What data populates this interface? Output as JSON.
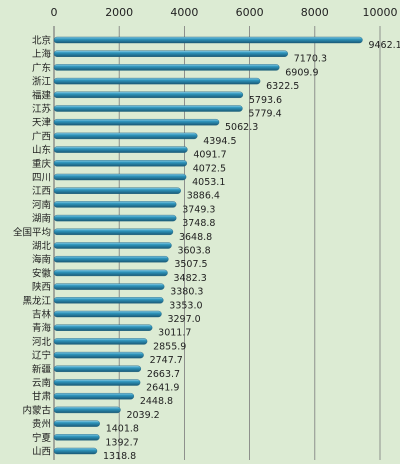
{
  "chart_data": {
    "type": "bar",
    "orientation": "horizontal",
    "title": "",
    "xlabel": "",
    "ylabel": "",
    "axis_position": "top",
    "xlim": [
      0,
      10000
    ],
    "xticks": [
      "0",
      "2000",
      "4000",
      "6000",
      "8000",
      "10000"
    ],
    "grid": true,
    "legend": "none",
    "colors": {
      "bar": "#2a8ab0",
      "bar_light": "#7cc4de",
      "bar_dark": "#1b5d7a",
      "background": "#dcebd3",
      "grid": "#7a7a7a"
    },
    "categories": [
      "北京",
      "上海",
      "广东",
      "浙江",
      "福建",
      "江苏",
      "天津",
      "广西",
      "山东",
      "重庆",
      "四川",
      "江西",
      "河南",
      "湖南",
      "全国平均",
      "湖北",
      "海南",
      "安徽",
      "陕西",
      "黑龙江",
      "吉林",
      "青海",
      "河北",
      "辽宁",
      "新疆",
      "云南",
      "甘肃",
      "内蒙古",
      "贵州",
      "宁夏",
      "山西"
    ],
    "values": [
      9462.1,
      7170.3,
      6909.9,
      6322.5,
      5793.6,
      5779.4,
      5062.3,
      4394.5,
      4091.7,
      4072.5,
      4053.1,
      3886.4,
      3749.3,
      3748.8,
      3648.8,
      3603.8,
      3507.5,
      3482.3,
      3380.3,
      3353.0,
      3297.0,
      3011.7,
      2855.9,
      2747.7,
      2663.7,
      2641.9,
      2448.8,
      2039.2,
      1401.8,
      1392.7,
      1318.8
    ],
    "value_labels": [
      "9462.1",
      "7170.3",
      "6909.9",
      "6322.5",
      "5793.6",
      "5779.4",
      "5062.3",
      "4394.5",
      "4091.7",
      "4072.5",
      "4053.1",
      "3886.4",
      "3749.3",
      "3748.8",
      "3648.8",
      "3603.8",
      "3507.5",
      "3482.3",
      "3380.3",
      "3353.0",
      "3297.0",
      "3011.7",
      "2855.9",
      "2747.7",
      "2663.7",
      "2641.9",
      "2448.8",
      "2039.2",
      "1401.8",
      "1392.7",
      "1318.8"
    ]
  }
}
